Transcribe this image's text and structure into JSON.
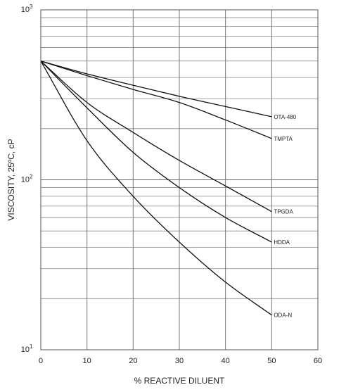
{
  "chart_data": {
    "type": "line",
    "title": "",
    "xlabel": "% REACTIVE DILUENT",
    "ylabel": "VISCOSITY, 25ºC, cP",
    "xlim": [
      0,
      60
    ],
    "ylim": [
      10,
      1000
    ],
    "yscale": "log",
    "grid": true,
    "x_ticks": [
      0,
      10,
      20,
      30,
      40,
      50,
      60
    ],
    "x_tick_labels": [
      "0",
      "10",
      "20",
      "30",
      "40",
      "50",
      "60"
    ],
    "y_tick_labels": [
      {
        "value": 10,
        "base": "10",
        "exp": "1"
      },
      {
        "value": 100,
        "base": "10",
        "exp": "2"
      },
      {
        "value": 1000,
        "base": "10",
        "exp": "3"
      }
    ],
    "series": [
      {
        "name": "OTA-480",
        "x": [
          0,
          10,
          20,
          30,
          40,
          50
        ],
        "y": [
          500,
          420,
          360,
          310,
          270,
          235
        ]
      },
      {
        "name": "TMPTA",
        "x": [
          0,
          10,
          20,
          30,
          40,
          50
        ],
        "y": [
          500,
          410,
          340,
          285,
          225,
          175
        ]
      },
      {
        "name": "TPGDA",
        "x": [
          0,
          10,
          20,
          30,
          40,
          50
        ],
        "y": [
          500,
          285,
          190,
          130,
          92,
          65
        ]
      },
      {
        "name": "HDDA",
        "x": [
          0,
          10,
          20,
          30,
          40,
          50
        ],
        "y": [
          500,
          265,
          145,
          90,
          60,
          43
        ]
      },
      {
        "name": "ODA-N",
        "x": [
          0,
          10,
          20,
          30,
          40,
          50
        ],
        "y": [
          500,
          170,
          80,
          43,
          25,
          16
        ]
      }
    ]
  }
}
